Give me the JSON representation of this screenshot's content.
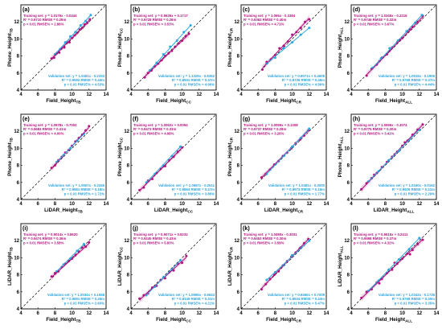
{
  "figure": {
    "columns": 4,
    "rows": 3,
    "colors": {
      "training": "#b3127e",
      "validation": "#27a9e1",
      "one_to_one": "#000000",
      "train_text": "#b3127e",
      "valid_text": "#2aa3dc",
      "axis_label": "#000000",
      "background": "#ffffff"
    }
  },
  "chart_data": [
    {
      "type": "scatter",
      "panel_label": "(a)",
      "xlabel": "Field_Height_TB",
      "ylabel": "Phone_Height_TB",
      "xlim": [
        4,
        14
      ],
      "ylim": [
        4,
        14
      ],
      "xticks": [
        4,
        6,
        8,
        10,
        12,
        14
      ],
      "yticks": [
        4,
        6,
        8,
        10,
        12
      ],
      "training_text": [
        "Training set:  y = 1.0179x - 0.0444",
        "R² = 0.9710     RMSE = 0.29m",
        "p < 0.01         RMSE% = 2.86%"
      ],
      "validation_text": [
        "Validation set:  y = 1.0481x - 0.2333",
        "R² = 0.9592     RMSE = 0.43m",
        "p < 0.01         RMSE% = 4.53%"
      ],
      "fit": {
        "slope": 1.0179,
        "intercept": -0.0444
      },
      "training_x": [
        7.6,
        7.9,
        8.2,
        8.5,
        8.8,
        9.1,
        9.4,
        9.7,
        10.0,
        10.3,
        10.6,
        10.9,
        11.2,
        11.5,
        11.8,
        12.1
      ],
      "training_y": [
        7.7,
        7.8,
        8.3,
        8.4,
        8.9,
        9.0,
        9.6,
        9.6,
        10.1,
        10.4,
        10.7,
        11.1,
        11.3,
        11.7,
        11.9,
        12.3
      ],
      "validation_x": [
        8.0,
        8.6,
        9.2,
        9.8,
        10.4,
        11.0,
        11.6,
        12.2
      ],
      "validation_y": [
        8.2,
        8.8,
        9.6,
        10.3,
        10.8,
        11.6,
        12.1,
        12.8
      ]
    },
    {
      "type": "scatter",
      "panel_label": "(b)",
      "xlabel": "Field_Height_CC",
      "ylabel": "Phone_Height_CC",
      "xlim": [
        4,
        14
      ],
      "ylim": [
        4,
        14
      ],
      "xticks": [
        4,
        6,
        8,
        10,
        12,
        14
      ],
      "yticks": [
        4,
        6,
        8,
        10,
        12
      ],
      "training_text": [
        "Training set:  y = 0.9635x + 0.1717",
        "R² = 0.9728     RMSE = 0.26m",
        "p < 0.01         RMSE% = 3.53%"
      ],
      "validation_text": [
        "Validation set:  y = 1.1325x - 0.8352",
        "R² = 0.8941     RMSE = 0.37m",
        "p < 0.01         RMSE% = 4.96%"
      ],
      "fit": {
        "slope": 0.9635,
        "intercept": 0.1717
      },
      "training_x": [
        5.6,
        6.0,
        6.4,
        6.8,
        7.2,
        7.6,
        8.0,
        8.4,
        8.8,
        9.2,
        9.6,
        10.0,
        10.4,
        10.8
      ],
      "training_y": [
        5.5,
        6.0,
        6.3,
        6.8,
        7.1,
        7.5,
        8.0,
        8.3,
        8.6,
        9.1,
        9.5,
        9.8,
        10.3,
        10.6
      ],
      "validation_x": [
        6.2,
        7.0,
        7.8,
        8.6,
        9.4,
        10.2,
        11.0
      ],
      "validation_y": [
        6.3,
        7.2,
        8.2,
        9.1,
        9.8,
        10.8,
        11.6
      ]
    },
    {
      "type": "scatter",
      "panel_label": "(c)",
      "xlabel": "Field_Height_CR",
      "ylabel": "Phone_Height_CR",
      "xlim": [
        4,
        14
      ],
      "ylim": [
        4,
        14
      ],
      "xticks": [
        4,
        6,
        8,
        10,
        12,
        14
      ],
      "yticks": [
        4,
        6,
        8,
        10,
        12
      ],
      "training_text": [
        "Training set:  y = 1.065x - 0.3384",
        "R² = 0.9362     RMSE = 0.40m",
        "p < 0.01         RMSE% = 4.71%"
      ],
      "validation_text": [
        "Validation set:  y = 0.9071x + 0.4608",
        "R² = 0.8736     RMSE = 0.45m",
        "p < 0.01         RMSE% = 4.96%"
      ],
      "fit": {
        "slope": 1.065,
        "intercept": -0.3384
      },
      "training_x": [
        6.5,
        7.0,
        7.5,
        8.0,
        8.5,
        9.0,
        9.5,
        10.0,
        10.5,
        11.0,
        11.5,
        12.0
      ],
      "training_y": [
        6.4,
        7.3,
        7.6,
        8.1,
        8.9,
        9.2,
        9.7,
        10.5,
        10.8,
        11.3,
        12.0,
        12.3
      ],
      "validation_x": [
        7.0,
        8.0,
        9.0,
        10.0,
        11.0,
        12.0
      ],
      "validation_y": [
        7.1,
        7.8,
        8.9,
        9.6,
        10.5,
        11.3
      ]
    },
    {
      "type": "scatter",
      "panel_label": "(d)",
      "xlabel": "Field_Height_ALL",
      "ylabel": "Phone_Height_ALL",
      "xlim": [
        4,
        14
      ],
      "ylim": [
        4,
        14
      ],
      "xticks": [
        4,
        6,
        8,
        10,
        12,
        14
      ],
      "yticks": [
        4,
        6,
        8,
        10,
        12
      ],
      "training_text": [
        "Training set:  y = 1.0345x - 0.2216",
        "R² = 0.9746     RMSE = 0.32m",
        "p < 0.01         RMSE% = 3.67%"
      ],
      "validation_text": [
        "Validation set:  y = 1.0515x - 0.1906",
        "R² = 0.9768     RMSE = 0.37m",
        "p < 0.01         RMSE% = 4.44%"
      ],
      "fit": {
        "slope": 1.0345,
        "intercept": -0.2216
      },
      "training_x": [
        5.8,
        6.4,
        7.0,
        7.6,
        8.2,
        8.8,
        9.4,
        10.0,
        10.6,
        11.2,
        11.8,
        12.4,
        7.3,
        8.5,
        9.7,
        10.9
      ],
      "training_y": [
        5.7,
        6.5,
        7.0,
        7.8,
        8.2,
        9.0,
        9.6,
        10.1,
        10.9,
        11.4,
        12.0,
        12.7,
        7.4,
        8.6,
        9.9,
        11.1
      ],
      "validation_x": [
        6.5,
        7.5,
        8.5,
        9.5,
        10.5,
        11.5,
        12.3
      ],
      "validation_y": [
        6.6,
        7.7,
        8.9,
        9.8,
        10.9,
        11.9,
        12.8
      ]
    },
    {
      "type": "scatter",
      "panel_label": "(e)",
      "xlabel": "LiDAR_Height_TB",
      "ylabel": "Phone_Height_TB",
      "xlim": [
        4,
        14
      ],
      "ylim": [
        4,
        14
      ],
      "xticks": [
        4,
        6,
        8,
        10,
        12,
        14
      ],
      "yticks": [
        4,
        6,
        8,
        10,
        12
      ],
      "training_text": [
        "Training set:  y = 1.0978x - 0.7002",
        "R² = 0.9683     RMSE = 0.41m",
        "p < 0.01         RMSE% = 4.00%"
      ],
      "validation_text": [
        "Validation set:  y = 1.0507x - 0.3345",
        "R² = 0.9861     RMSE = 0.18m",
        "p < 0.01         RMSE% = 1.72%"
      ],
      "fit": {
        "slope": 1.0978,
        "intercept": -0.7002
      },
      "training_x": [
        7.6,
        8.0,
        8.4,
        8.8,
        9.2,
        9.6,
        10.0,
        10.4,
        10.8,
        11.2,
        11.6,
        12.0
      ],
      "training_y": [
        7.7,
        8.0,
        8.6,
        9.0,
        9.5,
        9.8,
        10.3,
        10.8,
        11.2,
        11.6,
        12.1,
        12.6
      ],
      "validation_x": [
        8.2,
        9.0,
        9.8,
        10.6,
        11.4
      ],
      "validation_y": [
        8.4,
        9.2,
        10.0,
        10.9,
        11.7
      ]
    },
    {
      "type": "scatter",
      "panel_label": "(f)",
      "xlabel": "LiDAR_Height_CC",
      "ylabel": "Phone_Height_CC",
      "xlim": [
        4,
        14
      ],
      "ylim": [
        4,
        14
      ],
      "xticks": [
        4,
        6,
        8,
        10,
        12,
        14
      ],
      "yticks": [
        4,
        6,
        8,
        10,
        12
      ],
      "training_text": [
        "Training set:  y = 1.0062x + 0.0094",
        "R² = 0.9473     RMSE = 0.33m",
        "p < 0.01         RMSE% = 4.68%"
      ],
      "validation_text": [
        "Validation set:  y = 1.0567x - 0.2511",
        "R² = 0.9864     RMSE = 0.27m",
        "p < 0.01         RMSE% = 3.86%"
      ],
      "fit": {
        "slope": 1.0062,
        "intercept": 0.0094
      },
      "training_x": [
        5.0,
        5.5,
        6.0,
        6.5,
        7.0,
        7.5,
        8.0,
        8.5,
        9.0,
        9.5,
        10.0
      ],
      "training_y": [
        5.1,
        5.4,
        6.2,
        6.4,
        7.1,
        7.6,
        7.9,
        8.6,
        9.0,
        9.6,
        10.1
      ],
      "validation_x": [
        5.8,
        6.8,
        7.8,
        8.8,
        9.8
      ],
      "validation_y": [
        6.0,
        7.0,
        8.0,
        9.1,
        10.2
      ]
    },
    {
      "type": "scatter",
      "panel_label": "(g)",
      "xlabel": "LiDAR_Height_CR",
      "ylabel": "Phone_Height_CR",
      "xlim": [
        4,
        14
      ],
      "ylim": [
        4,
        14
      ],
      "xticks": [
        4,
        6,
        8,
        10,
        12,
        14
      ],
      "yticks": [
        4,
        6,
        8,
        10,
        12
      ],
      "training_text": [
        "Training set:  y = 1.0059x + 0.1308",
        "R² = 0.9737     RMSE = 0.28m",
        "p < 0.01         RMSE% = 3.26%"
      ],
      "validation_text": [
        "Validation set:  y = 1.0481x - 0.3000",
        "R² = 0.9973     RMSE = 0.16m",
        "p < 0.01         RMSE% = 1.77%"
      ],
      "fit": {
        "slope": 1.0059,
        "intercept": 0.1308
      },
      "training_x": [
        6.4,
        6.9,
        7.4,
        7.9,
        8.4,
        8.9,
        9.4,
        9.9,
        10.4,
        10.9,
        11.4,
        11.9
      ],
      "training_y": [
        6.6,
        7.0,
        7.5,
        8.1,
        8.5,
        9.1,
        9.5,
        10.0,
        10.6,
        11.0,
        11.5,
        12.1
      ],
      "validation_x": [
        7.0,
        8.0,
        9.0,
        10.0,
        11.0,
        12.0
      ],
      "validation_y": [
        7.0,
        8.1,
        9.1,
        10.2,
        11.2,
        12.3
      ]
    },
    {
      "type": "scatter",
      "panel_label": "(h)",
      "xlabel": "LiDAR_Height_ALL",
      "ylabel": "Phone_Height_ALL",
      "xlim": [
        4,
        14
      ],
      "ylim": [
        4,
        14
      ],
      "xticks": [
        4,
        6,
        8,
        10,
        12,
        14
      ],
      "yticks": [
        4,
        6,
        8,
        10,
        12
      ],
      "training_text": [
        "Training set:  y = 1.0556x - 0.3074",
        "R² = 0.9775     RMSE = 0.30m",
        "p < 0.01         RMSE% = 3.41%"
      ],
      "validation_text": [
        "Validation set:  y = 1.0160x - 0.0162",
        "R² = 0.9929     RMSE = 0.21m",
        "p < 0.01         RMSE% = 2.29%"
      ],
      "fit": {
        "slope": 1.0556,
        "intercept": -0.3074
      },
      "training_x": [
        5.2,
        5.8,
        6.4,
        7.0,
        7.6,
        8.2,
        8.8,
        9.4,
        10.0,
        10.6,
        11.2,
        11.8,
        12.4,
        6.7,
        9.1,
        10.3
      ],
      "training_y": [
        5.2,
        5.9,
        6.5,
        7.1,
        7.8,
        8.4,
        9.0,
        9.6,
        10.3,
        10.9,
        11.6,
        12.2,
        12.8,
        6.9,
        9.3,
        10.7
      ],
      "validation_x": [
        6.0,
        7.2,
        8.4,
        9.6,
        10.8,
        12.0
      ],
      "validation_y": [
        6.1,
        7.3,
        8.6,
        9.7,
        11.0,
        12.2
      ]
    },
    {
      "type": "scatter",
      "panel_label": "(i)",
      "xlabel": "Field_Height_TB",
      "ylabel": "LiDAR_Height_TB",
      "xlim": [
        4,
        14
      ],
      "ylim": [
        4,
        14
      ],
      "xticks": [
        4,
        6,
        8,
        10,
        12,
        14
      ],
      "yticks": [
        4,
        6,
        8,
        10,
        12
      ],
      "training_text": [
        "Training set:  y = 0.9014x + 0.8620",
        "R² = 0.9474     RMSE = 0.36m",
        "p < 0.01         RMSE% = 3.58%"
      ],
      "validation_text": [
        "Validation set:  y = 1.0034x + 0.1558",
        "R² = 0.9891     RMSE = 0.26m",
        "p < 0.01         RMSE% = 2.60%"
      ],
      "fit": {
        "slope": 0.9014,
        "intercept": 0.862
      },
      "training_x": [
        7.6,
        8.0,
        8.4,
        8.8,
        9.2,
        9.6,
        10.0,
        10.4,
        10.8,
        11.2,
        11.6,
        12.0
      ],
      "training_y": [
        7.8,
        8.2,
        8.4,
        8.9,
        9.3,
        9.6,
        9.9,
        10.3,
        10.7,
        11.2,
        11.3,
        11.8
      ],
      "validation_x": [
        8.2,
        9.0,
        9.8,
        10.6,
        11.4
      ],
      "validation_y": [
        8.4,
        9.2,
        9.9,
        10.8,
        11.6
      ]
    },
    {
      "type": "scatter",
      "panel_label": "(j)",
      "xlabel": "Field_Height_CC",
      "ylabel": "LiDAR_Height_CC",
      "xlim": [
        4,
        14
      ],
      "ylim": [
        4,
        14
      ],
      "xticks": [
        4,
        6,
        8,
        10,
        12,
        14
      ],
      "yticks": [
        4,
        6,
        8,
        10,
        12
      ],
      "training_text": [
        "Training set:  y = 0.9071x + 0.5232",
        "R² = 0.9245     RMSE = 0.43m",
        "p < 0.01         RMSE% = 5.83%"
      ],
      "validation_text": [
        "Validation set:  y = 1.0596x - 0.6643",
        "R² = 0.9149     RMSE = 0.31m",
        "p < 0.01         RMSE% = 4.21%"
      ],
      "fit": {
        "slope": 0.9071,
        "intercept": 0.5232
      },
      "training_x": [
        5.0,
        5.5,
        6.0,
        6.5,
        7.0,
        7.5,
        8.0,
        8.5,
        9.0,
        9.5,
        10.0,
        10.5
      ],
      "training_y": [
        5.2,
        5.6,
        5.8,
        6.5,
        6.7,
        7.4,
        7.6,
        8.3,
        8.5,
        9.3,
        9.4,
        10.2
      ],
      "validation_x": [
        5.8,
        6.8,
        7.8,
        8.8,
        9.8
      ],
      "validation_y": [
        5.6,
        6.6,
        7.7,
        8.6,
        9.7
      ]
    },
    {
      "type": "scatter",
      "panel_label": "(k)",
      "xlabel": "Field_Height_CR",
      "ylabel": "LiDAR_Height_CR",
      "xlim": [
        4,
        14
      ],
      "ylim": [
        4,
        14
      ],
      "xticks": [
        4,
        6,
        8,
        10,
        12,
        14
      ],
      "yticks": [
        4,
        6,
        8,
        10,
        12
      ],
      "training_text": [
        "Training set:  y = 1.0490x - 0.3031",
        "R² = 0.9453     RMSE = 0.30m",
        "p < 0.01         RMSE% = 3.59%"
      ],
      "validation_text": [
        "Validation set:  y = 0.9466x + 0.7009",
        "R² = 0.8934     RMSE = 0.43m",
        "p < 0.01         RMSE% = 5.47%"
      ],
      "fit": {
        "slope": 1.049,
        "intercept": -0.3031
      },
      "training_x": [
        6.4,
        6.9,
        7.4,
        7.9,
        8.4,
        8.9,
        9.4,
        9.9,
        10.4,
        10.9,
        11.4,
        11.9
      ],
      "training_y": [
        6.3,
        6.9,
        7.5,
        8.0,
        8.4,
        9.1,
        9.6,
        10.1,
        10.6,
        11.1,
        11.7,
        12.2
      ],
      "validation_x": [
        7.0,
        8.0,
        9.0,
        10.0,
        11.0,
        12.0
      ],
      "validation_y": [
        7.4,
        8.3,
        9.1,
        10.3,
        11.2,
        12.0
      ]
    },
    {
      "type": "scatter",
      "panel_label": "(l)",
      "xlabel": "Field_Height_ALL",
      "ylabel": "LiDAR_Height_ALL",
      "xlim": [
        4,
        14
      ],
      "ylim": [
        4,
        14
      ],
      "xticks": [
        4,
        6,
        8,
        10,
        12,
        14
      ],
      "yticks": [
        4,
        6,
        8,
        10,
        12
      ],
      "training_text": [
        "Training set:  y = 0.9615x + 0.2411",
        "R² = 0.9598     RMSE = 0.37m",
        "p < 0.01         RMSE% = 4.32%"
      ],
      "validation_text": [
        "Validation set:  y = 1.0342x - 0.1735",
        "R² = 0.9768     RMSE = 0.30m",
        "p < 0.01         RMSE% = 3.35%"
      ],
      "fit": {
        "slope": 0.9615,
        "intercept": 0.2411
      },
      "training_x": [
        5.2,
        5.8,
        6.4,
        7.0,
        7.6,
        8.2,
        8.8,
        9.4,
        10.0,
        10.6,
        11.2,
        11.8,
        12.4,
        7.3,
        9.1,
        10.9
      ],
      "training_y": [
        5.3,
        6.0,
        6.3,
        7.1,
        7.5,
        8.2,
        8.6,
        9.3,
        9.9,
        10.5,
        10.9,
        11.6,
        12.1,
        7.0,
        9.4,
        10.4
      ],
      "validation_x": [
        6.0,
        7.2,
        8.4,
        9.6,
        10.8,
        12.0
      ],
      "validation_y": [
        6.1,
        7.3,
        8.6,
        9.8,
        11.0,
        12.3
      ]
    }
  ]
}
